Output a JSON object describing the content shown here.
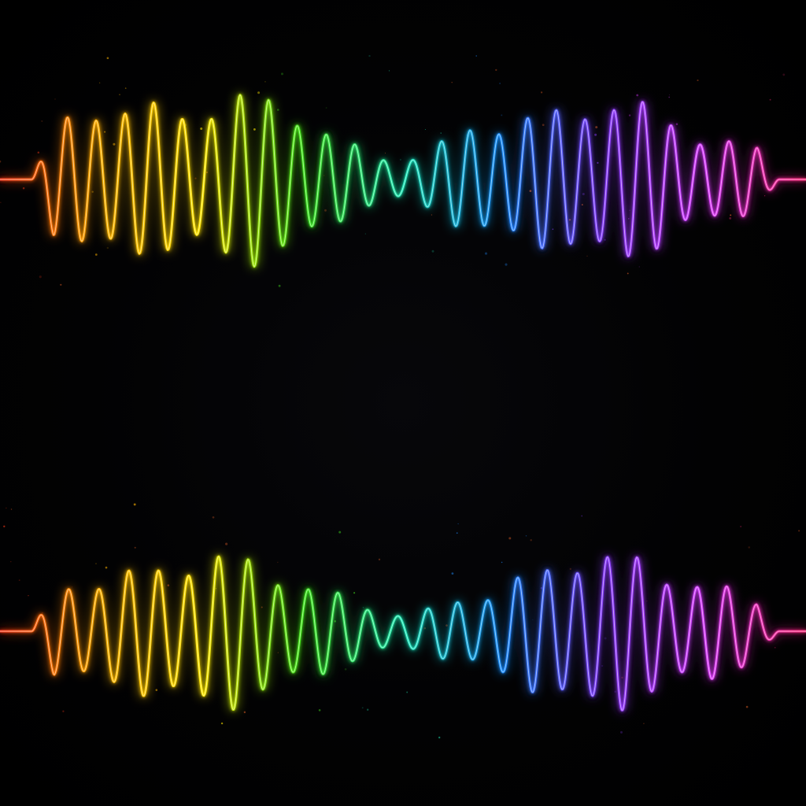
{
  "scene": {
    "background_color": "#000000",
    "waveforms": [
      {
        "name": "upper-waveform",
        "amplitude_profile": [
          0.55,
          1.0,
          0.85,
          0.25,
          0.9,
          0.8,
          0.35
        ],
        "cycles": 26
      },
      {
        "name": "lower-waveform",
        "amplitude_profile": [
          0.45,
          0.95,
          0.8,
          0.2,
          0.8,
          0.95,
          0.3
        ],
        "cycles": 25
      }
    ],
    "spectrum_colors": [
      "#ff3a1a",
      "#ffb300",
      "#ffe600",
      "#43e61e",
      "#1fe6b4",
      "#1e8cff",
      "#8a3cff",
      "#d93cff",
      "#ff2a7a"
    ],
    "particle_color": "#ff6a2a",
    "particle_count": 140
  }
}
